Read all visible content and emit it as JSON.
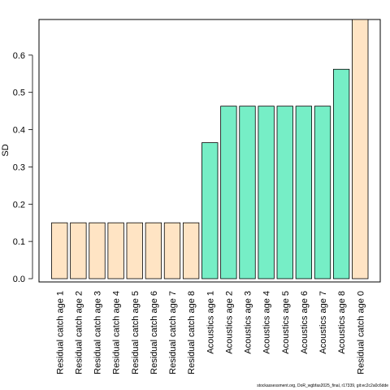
{
  "chart_data": {
    "type": "bar",
    "ylabel": "SD",
    "xlabel": "",
    "title": "",
    "ylim": [
      0,
      0.7
    ],
    "yticks": [
      0.0,
      0.1,
      0.2,
      0.3,
      0.4,
      0.5,
      0.6
    ],
    "ytick_labels": [
      "0.0",
      "0.1",
      "0.2",
      "0.3",
      "0.4",
      "0.5",
      "0.6"
    ],
    "categories": [
      "Residual catch age 1",
      "Residual catch age 2",
      "Residual catch age 3",
      "Residual catch age 4",
      "Residual catch age 5",
      "Residual catch age 6",
      "Residual catch age 7",
      "Residual catch age 8",
      "Acoustics age 1",
      "Acoustics age 2",
      "Acoustics age 3",
      "Acoustics age 4",
      "Acoustics age 5",
      "Acoustics age 6",
      "Acoustics age 7",
      "Acoustics age 8",
      "Residual catch age 0"
    ],
    "values": [
      0.15,
      0.15,
      0.15,
      0.15,
      0.15,
      0.15,
      0.15,
      0.15,
      0.365,
      0.463,
      0.463,
      0.463,
      0.463,
      0.463,
      0.463,
      0.562,
      0.7
    ],
    "colors": [
      "#ffe4c4",
      "#ffe4c4",
      "#ffe4c4",
      "#ffe4c4",
      "#ffe4c4",
      "#ffe4c4",
      "#ffe4c4",
      "#ffe4c4",
      "#76eec6",
      "#76eec6",
      "#76eec6",
      "#76eec6",
      "#76eec6",
      "#76eec6",
      "#76eec6",
      "#76eec6",
      "#ffe4c4"
    ],
    "grid": false
  },
  "footer": "stockassessment.org, DoR_wgbfas2025_final, r17339, git:ec2c2a0c6dde"
}
